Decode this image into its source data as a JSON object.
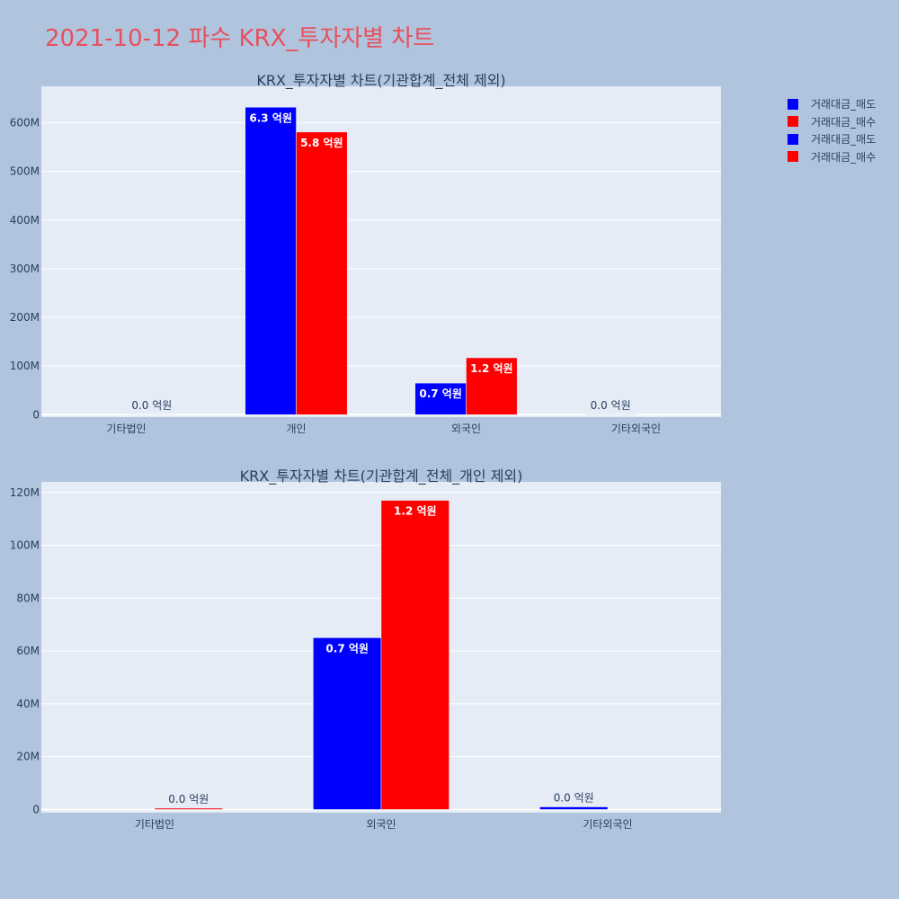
{
  "page": {
    "title": "2021-10-12 파수 KRX_투자자별 차트"
  },
  "legend": {
    "items": [
      {
        "label": "거래대금_매도",
        "color": "#0000ff"
      },
      {
        "label": "거래대금_매수",
        "color": "#ff0000"
      },
      {
        "label": "거래대금_매도",
        "color": "#0000ff"
      },
      {
        "label": "거래대금_매수",
        "color": "#ff0000"
      }
    ]
  },
  "chart_data": [
    {
      "type": "bar",
      "title": "KRX_투자자별 차트(기관합계_전체 제외)",
      "categories": [
        "기타법인",
        "개인",
        "외국인",
        "기타외국인"
      ],
      "series": [
        {
          "name": "거래대금_매도",
          "color": "#0000ff",
          "values": [
            0,
            632000000,
            65000000,
            1000000
          ],
          "labels": [
            "",
            "6.3 억원",
            "0.7 억원",
            "0.0 억원"
          ]
        },
        {
          "name": "거래대금_매수",
          "color": "#ff0000",
          "values": [
            500000,
            581000000,
            117000000,
            0
          ],
          "labels": [
            "0.0 억원",
            "5.8 억원",
            "1.2 억원",
            ""
          ]
        }
      ],
      "ylim": [
        -5000000,
        675000000
      ],
      "yticks": [
        0,
        100000000,
        200000000,
        300000000,
        400000000,
        500000000,
        600000000
      ],
      "yticklabels": [
        "0",
        "100M",
        "200M",
        "300M",
        "400M",
        "500M",
        "600M"
      ],
      "grid": true
    },
    {
      "type": "bar",
      "title": "KRX_투자자별 차트(기관합계_전체_개인 제외)",
      "categories": [
        "기타법인",
        "외국인",
        "기타외국인"
      ],
      "series": [
        {
          "name": "거래대금_매도",
          "color": "#0000ff",
          "values": [
            0,
            65000000,
            1000000
          ],
          "labels": [
            "",
            "0.7 억원",
            "0.0 억원"
          ]
        },
        {
          "name": "거래대금_매수",
          "color": "#ff0000",
          "values": [
            500000,
            117000000,
            0
          ],
          "labels": [
            "0.0 억원",
            "1.2 억원",
            ""
          ]
        }
      ],
      "ylim": [
        -1200000,
        124000000
      ],
      "yticks": [
        0,
        20000000,
        40000000,
        60000000,
        80000000,
        100000000,
        120000000
      ],
      "yticklabels": [
        "0",
        "20M",
        "40M",
        "60M",
        "80M",
        "100M",
        "120M"
      ],
      "grid": true
    }
  ]
}
